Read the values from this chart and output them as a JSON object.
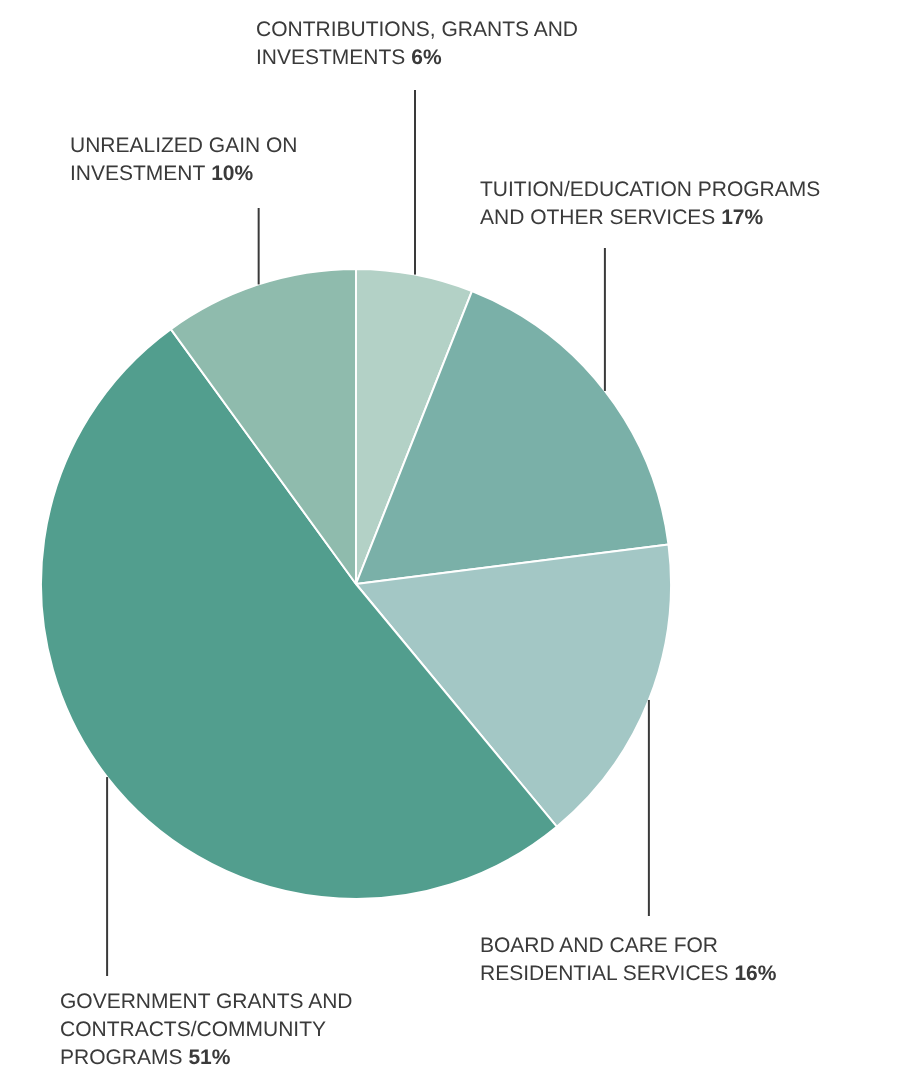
{
  "chart_data": {
    "type": "pie",
    "categories": [
      "CONTRIBUTIONS, GRANTS AND INVESTMENTS",
      "TUITION/EDUCATION PROGRAMS AND OTHER SERVICES",
      "BOARD AND CARE FOR RESIDENTIAL SERVICES",
      "GOVERNMENT GRANTS AND CONTRACTS/COMMUNITY PROGRAMS",
      "UNREALIZED GAIN ON INVESTMENT"
    ],
    "values": [
      6,
      17,
      16,
      51,
      10
    ],
    "value_labels": [
      "6%",
      "17%",
      "16%",
      "51%",
      "10%"
    ],
    "colors": [
      "#b3d1c6",
      "#7ab0a8",
      "#a3c7c5",
      "#529e8e",
      "#8fbbad"
    ]
  }
}
